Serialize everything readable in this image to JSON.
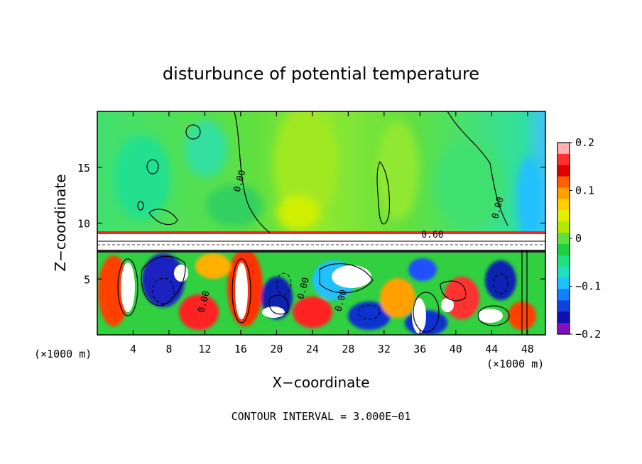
{
  "chart_data": {
    "type": "heatmap",
    "title": "disturbunce of potential temperature",
    "xlabel": "X−coordinate",
    "ylabel": "Z−coordinate",
    "xunit_left": "(×1000 m)",
    "xunit_right": "(×1000 m)",
    "xlim": [
      0,
      50
    ],
    "ylim": [
      0,
      20
    ],
    "xticks": [
      4,
      8,
      12,
      16,
      20,
      24,
      28,
      32,
      36,
      40,
      44,
      48
    ],
    "yticks": [
      5,
      10,
      15
    ],
    "colorbar": {
      "min": -0.2,
      "max": 0.2,
      "ticks": [
        0.2,
        0.1,
        0,
        -0.1,
        -0.2
      ],
      "tick_labels": [
        "0.2",
        "0.1",
        "0",
        "−0.1",
        "−0.2"
      ],
      "colors": [
        "#ffb0b0",
        "#ff3030",
        "#e00000",
        "#ff6000",
        "#ffa000",
        "#ffd000",
        "#e0f000",
        "#b0e800",
        "#60e040",
        "#20d040",
        "#20e080",
        "#20e0c0",
        "#20c0ff",
        "#1080ff",
        "#1040e0",
        "#1010b0",
        "#8010c0"
      ]
    },
    "contour_labels": [
      {
        "text": "0.00",
        "x": 12.2,
        "z": 2.9
      },
      {
        "text": "0.00",
        "x": 16.2,
        "z": 13.7
      },
      {
        "text": "0.00",
        "x": 23.3,
        "z": 4.1
      },
      {
        "text": "0.00",
        "x": 27.5,
        "z": 3.0
      },
      {
        "text": "0.60",
        "x": 37.4,
        "z": 8.7
      },
      {
        "text": "0.00",
        "x": 45.0,
        "z": 11.3
      }
    ],
    "note": "CONTOUR INTERVAL = 3.000E−01"
  }
}
